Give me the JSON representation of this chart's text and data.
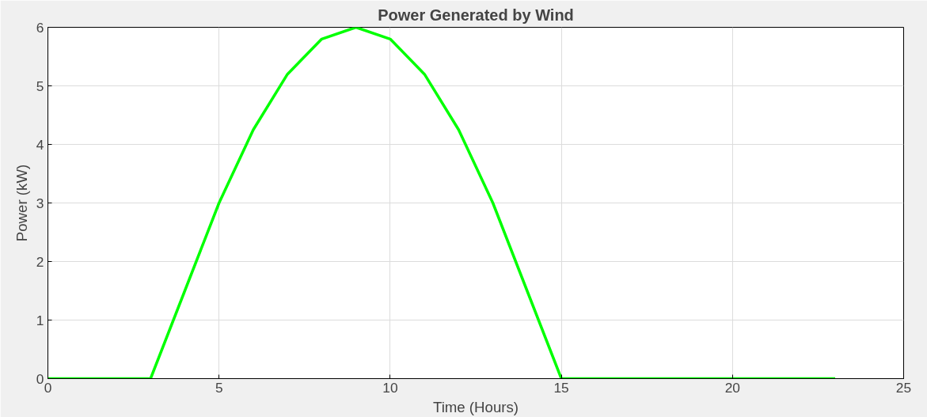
{
  "chart_data": {
    "type": "line",
    "title": "Power Generated by Wind",
    "xlabel": "Time (Hours)",
    "ylabel": "Power (kW)",
    "x": [
      0,
      1,
      2,
      3,
      4,
      5,
      6,
      7,
      8,
      9,
      10,
      11,
      12,
      13,
      14,
      15,
      16,
      17,
      18,
      19,
      20,
      21,
      22,
      23
    ],
    "series": [
      {
        "color": "#00ff00",
        "values": [
          0,
          0,
          0,
          0,
          1.5,
          3.0,
          4.25,
          5.2,
          5.8,
          6.0,
          5.8,
          5.2,
          4.25,
          3.0,
          1.5,
          0,
          0,
          0,
          0,
          0,
          0,
          0,
          0,
          0
        ]
      }
    ],
    "xlim": [
      0,
      25
    ],
    "ylim": [
      0,
      6
    ],
    "xticks": [
      0,
      5,
      10,
      15,
      20,
      25
    ],
    "yticks": [
      0,
      1,
      2,
      3,
      4,
      5,
      6
    ],
    "grid": true,
    "marker": "none",
    "line_style": "solid"
  }
}
